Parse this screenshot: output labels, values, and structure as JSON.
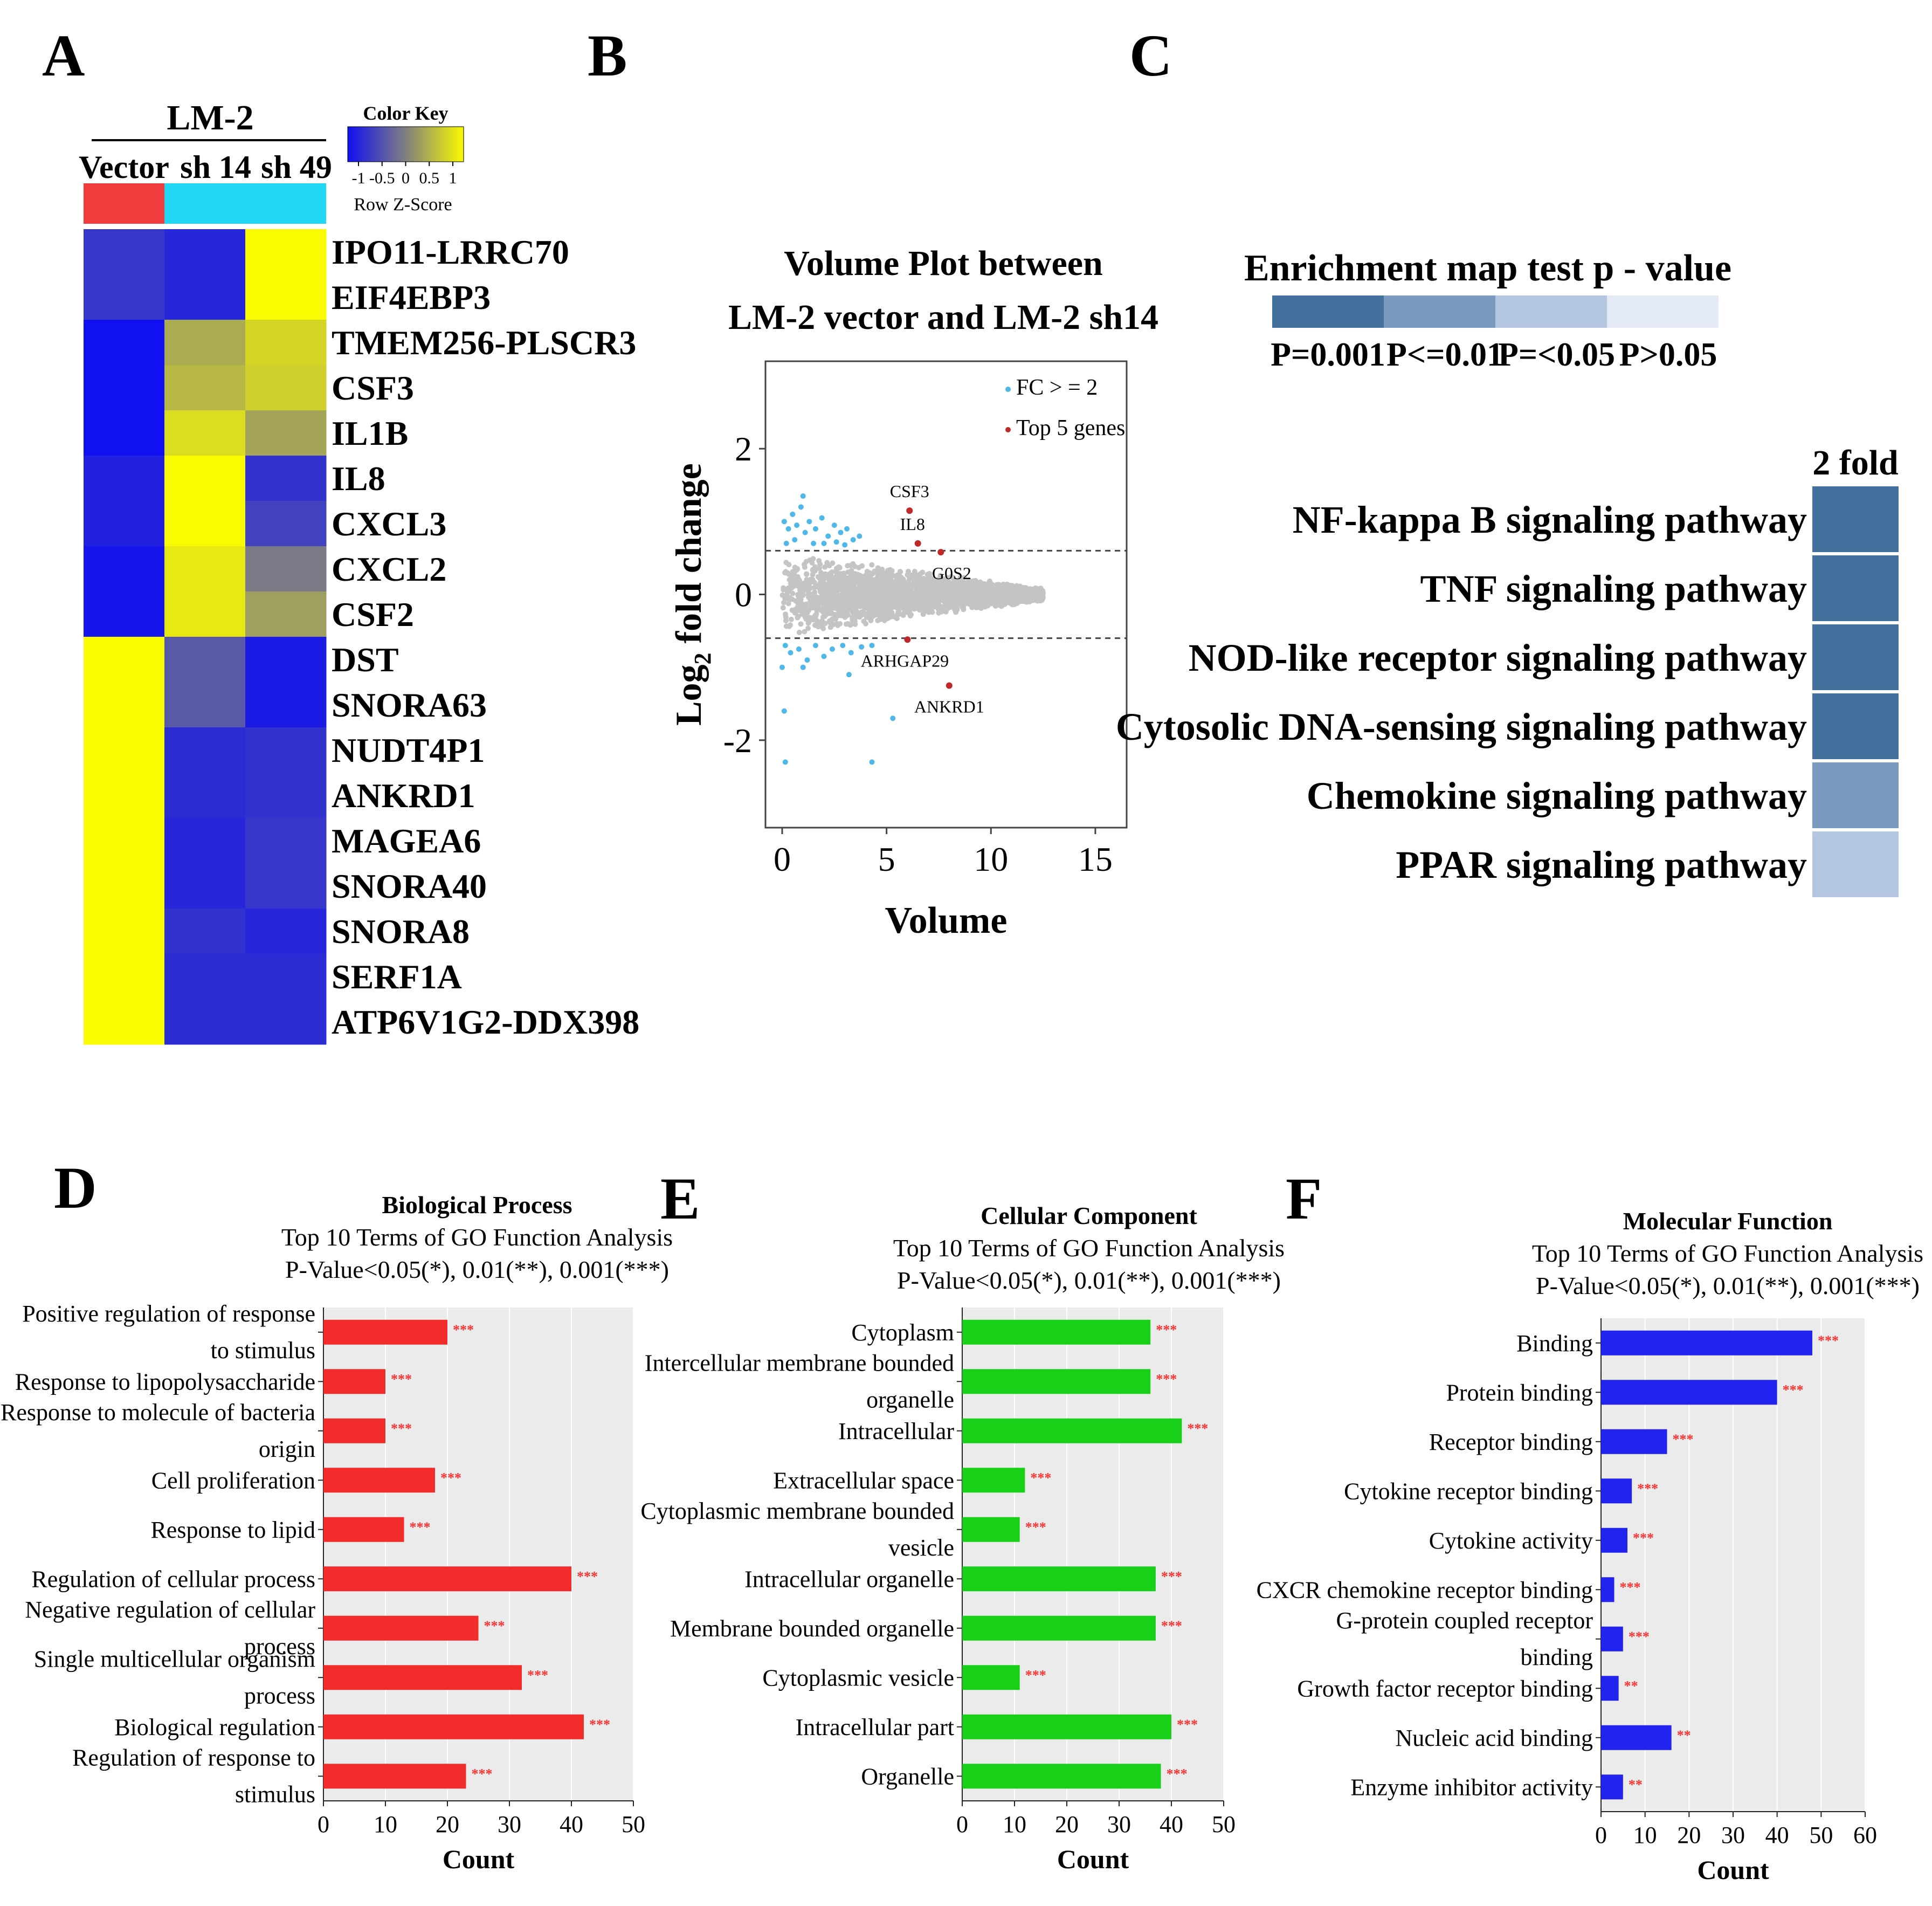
{
  "panels": [
    "A",
    "B",
    "C",
    "D",
    "E",
    "F"
  ],
  "heatmap": {
    "group_title": "LM-2",
    "columns": [
      "Vector",
      "sh 14",
      "sh 49"
    ],
    "column_group_colors": [
      "#f03c3c",
      "#22d6f5",
      "#22d6f5"
    ],
    "color_key": {
      "title": "Color Key",
      "ticks": [
        "-1",
        "-0.5",
        "0",
        "0.5",
        "1"
      ],
      "label": "Row Z-Score"
    },
    "rows": [
      {
        "gene": "IPO11-LRRC70",
        "z": [
          -0.65,
          -0.8,
          1.0
        ]
      },
      {
        "gene": "EIF4EBP3",
        "z": [
          -0.65,
          -0.8,
          1.0
        ]
      },
      {
        "gene": "TMEM256-PLSCR3",
        "z": [
          -1.0,
          0.35,
          0.7
        ]
      },
      {
        "gene": "CSF3",
        "z": [
          -1.0,
          0.45,
          0.65
        ]
      },
      {
        "gene": "IL1B",
        "z": [
          -1.0,
          0.75,
          0.3
        ]
      },
      {
        "gene": "IL8",
        "z": [
          -0.85,
          1.0,
          -0.7
        ]
      },
      {
        "gene": "CXCL3",
        "z": [
          -0.85,
          1.0,
          -0.55
        ]
      },
      {
        "gene": "CXCL2",
        "z": [
          -0.95,
          0.85,
          -0.05
        ]
      },
      {
        "gene": "CSF2",
        "z": [
          -0.95,
          0.85,
          0.25
        ]
      },
      {
        "gene": "DST",
        "z": [
          1.0,
          -0.35,
          -0.9
        ]
      },
      {
        "gene": "SNORA63",
        "z": [
          1.0,
          -0.35,
          -0.9
        ]
      },
      {
        "gene": "NUDT4P1",
        "z": [
          1.0,
          -0.75,
          -0.7
        ]
      },
      {
        "gene": "ANKRD1",
        "z": [
          1.0,
          -0.75,
          -0.7
        ]
      },
      {
        "gene": "MAGEA6",
        "z": [
          1.0,
          -0.8,
          -0.65
        ]
      },
      {
        "gene": "SNORA40",
        "z": [
          1.0,
          -0.8,
          -0.65
        ]
      },
      {
        "gene": "SNORA8",
        "z": [
          1.0,
          -0.7,
          -0.8
        ]
      },
      {
        "gene": "SERF1A",
        "z": [
          1.0,
          -0.75,
          -0.75
        ]
      },
      {
        "gene": "ATP6V1G2-DDX398",
        "z": [
          1.0,
          -0.75,
          -0.75
        ]
      }
    ]
  },
  "volume_plot": {
    "title_line1": "Volume Plot between",
    "title_line2": "LM-2 vector and LM-2 sh14",
    "xlabel": "Volume",
    "ylabel_pre": "Log",
    "ylabel_sub": "2",
    "ylabel_post": " fold change",
    "xlim": [
      -0.8,
      16.5
    ],
    "ylim": [
      -3.2,
      3.2
    ],
    "xticks": [
      0,
      5,
      10,
      15
    ],
    "yticks": [
      -2,
      0,
      2
    ],
    "thresholds": [
      0.6,
      -0.6
    ],
    "legend": [
      {
        "label": "FC > = 2",
        "color": "#4fb8e8"
      },
      {
        "label": "Top 5 genes",
        "color": "#c0282a"
      }
    ],
    "top_genes": [
      {
        "gene": "CSF3",
        "x": 6.1,
        "y": 1.15
      },
      {
        "gene": "IL8",
        "x": 6.5,
        "y": 0.7
      },
      {
        "gene": "G0S2",
        "x": 7.6,
        "y": 0.58
      },
      {
        "gene": "ARHGAP29",
        "x": 6.0,
        "y": -0.62
      },
      {
        "gene": "ANKRD1",
        "x": 8.0,
        "y": -1.25
      }
    ],
    "fc_points": [
      [
        0.1,
        1.0
      ],
      [
        0.3,
        0.9
      ],
      [
        0.5,
        1.1
      ],
      [
        0.7,
        0.95
      ],
      [
        0.9,
        1.2
      ],
      [
        1.1,
        0.85
      ],
      [
        1.3,
        1.0
      ],
      [
        1.6,
        0.9
      ],
      [
        1.9,
        1.05
      ],
      [
        2.2,
        0.8
      ],
      [
        2.5,
        0.95
      ],
      [
        2.8,
        0.85
      ],
      [
        3.1,
        0.9
      ],
      [
        3.4,
        0.75
      ],
      [
        3.7,
        0.8
      ],
      [
        1.0,
        1.35
      ],
      [
        0.2,
        0.7
      ],
      [
        0.6,
        0.75
      ],
      [
        1.5,
        0.7
      ],
      [
        2.0,
        0.7
      ],
      [
        2.6,
        0.72
      ],
      [
        3.0,
        0.68
      ],
      [
        0.15,
        -0.7
      ],
      [
        0.4,
        -0.8
      ],
      [
        0.8,
        -0.75
      ],
      [
        1.2,
        -0.9
      ],
      [
        1.6,
        -0.7
      ],
      [
        2.0,
        -0.85
      ],
      [
        2.4,
        -0.75
      ],
      [
        2.9,
        -0.7
      ],
      [
        3.3,
        -0.8
      ],
      [
        3.8,
        -0.72
      ],
      [
        4.3,
        -0.7
      ],
      [
        1.0,
        -1.0
      ],
      [
        0.0,
        -1.0
      ],
      [
        0.1,
        -1.6
      ],
      [
        0.15,
        -2.3
      ],
      [
        4.3,
        -2.3
      ],
      [
        5.3,
        -1.7
      ],
      [
        3.2,
        -1.1
      ]
    ]
  },
  "enrichment": {
    "legend_title": "Enrichment map test p - value",
    "legend_levels": [
      {
        "label": "P=0.001",
        "color": "#43709d"
      },
      {
        "label": "P<=0.01",
        "color": "#7a9ac0"
      },
      {
        "label": "P=<0.05",
        "color": "#b3c5df"
      },
      {
        "label": "P>0.05",
        "color": "#e3eaf5"
      }
    ],
    "column_label": "2 fold",
    "pathways": [
      {
        "name": "NF-kappa B signaling pathway",
        "color": "#43709d"
      },
      {
        "name": "TNF signaling pathway",
        "color": "#43709d"
      },
      {
        "name": "NOD-like receptor signaling pathway",
        "color": "#43709d"
      },
      {
        "name": "Cytosolic DNA-sensing signaling pathway",
        "color": "#43709d"
      },
      {
        "name": "Chemokine signaling pathway",
        "color": "#7a9ac0"
      },
      {
        "name": "PPAR signaling pathway",
        "color": "#b3c5df"
      }
    ]
  },
  "chart_data": [
    {
      "type": "bar",
      "title": "Biological Process",
      "subtitle1": "Top 10 Terms of GO Function Analysis",
      "subtitle2": "P-Value<0.05(*), 0.01(**), 0.001(***)",
      "xlabel": "Count",
      "xlim": [
        0,
        50
      ],
      "xticks": [
        0,
        10,
        20,
        30,
        40,
        50
      ],
      "color": "#f22b2b",
      "categories": [
        [
          "Positive regulation of response",
          "to stimulus"
        ],
        [
          "Response to lipopolysaccharide"
        ],
        [
          "Response to molecule of bacteria",
          "origin"
        ],
        [
          "Cell proliferation"
        ],
        [
          "Response to lipid"
        ],
        [
          "Regulation of cellular process"
        ],
        [
          "Negative regulation of cellular",
          "process"
        ],
        [
          "Single multicellular organism",
          "process"
        ],
        [
          "Biological regulation"
        ],
        [
          "Regulation of response to",
          "stimulus"
        ]
      ],
      "values": [
        20,
        10,
        10,
        18,
        13,
        40,
        25,
        32,
        42,
        23
      ],
      "significance": [
        "***",
        "***",
        "***",
        "***",
        "***",
        "***",
        "***",
        "***",
        "***",
        "***"
      ]
    },
    {
      "type": "bar",
      "title": "Cellular Component",
      "subtitle1": "Top 10 Terms of GO Function Analysis",
      "subtitle2": "P-Value<0.05(*), 0.01(**), 0.001(***)",
      "xlabel": "Count",
      "xlim": [
        0,
        50
      ],
      "xticks": [
        0,
        10,
        20,
        30,
        40,
        50
      ],
      "color": "#19d019",
      "categories": [
        [
          "Cytoplasm"
        ],
        [
          "Intercellular membrane bounded",
          "organelle"
        ],
        [
          "Intracellular"
        ],
        [
          "Extracellular space"
        ],
        [
          "Cytoplasmic membrane bounded",
          "vesicle"
        ],
        [
          "Intracellular organelle"
        ],
        [
          "Membrane bounded organelle"
        ],
        [
          "Cytoplasmic vesicle"
        ],
        [
          "Intracellular part"
        ],
        [
          "Organelle"
        ]
      ],
      "values": [
        36,
        36,
        42,
        12,
        11,
        37,
        37,
        11,
        40,
        38
      ],
      "significance": [
        "***",
        "***",
        "***",
        "***",
        "***",
        "***",
        "***",
        "***",
        "***",
        "***"
      ]
    },
    {
      "type": "bar",
      "title": "Molecular Function",
      "subtitle1": "Top 10 Terms of GO Function Analysis",
      "subtitle2": "P-Value<0.05(*), 0.01(**), 0.001(***)",
      "xlabel": "Count",
      "xlim": [
        0,
        60
      ],
      "xticks": [
        0,
        10,
        20,
        30,
        40,
        50,
        60
      ],
      "color": "#2323f0",
      "categories": [
        [
          "Binding"
        ],
        [
          "Protein binding"
        ],
        [
          "Receptor binding"
        ],
        [
          "Cytokine receptor binding"
        ],
        [
          "Cytokine activity"
        ],
        [
          "CXCR chemokine receptor binding"
        ],
        [
          "G-protein coupled receptor",
          "binding"
        ],
        [
          "Growth factor receptor binding"
        ],
        [
          "Nucleic acid binding"
        ],
        [
          "Enzyme inhibitor activity"
        ]
      ],
      "values": [
        48,
        40,
        15,
        7,
        6,
        3,
        5,
        4,
        16,
        5
      ],
      "significance": [
        "***",
        "***",
        "***",
        "***",
        "***",
        "***",
        "***",
        "**",
        "**",
        "**"
      ]
    }
  ]
}
